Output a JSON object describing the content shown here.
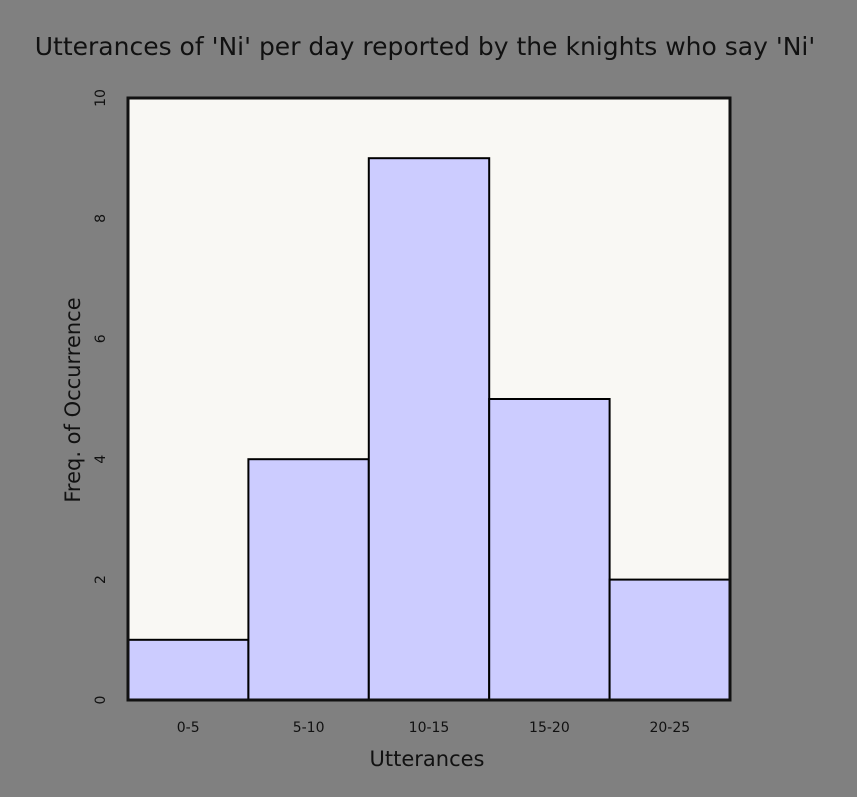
{
  "chart_data": {
    "type": "bar",
    "title": "Utterances of 'Ni' per day reported by the knights who say 'Ni'",
    "xlabel": "Utterances",
    "ylabel": "Freq. of Occurrence",
    "categories": [
      "0-5",
      "5-10",
      "10-15",
      "15-20",
      "20-25"
    ],
    "values": [
      1,
      4,
      9,
      5,
      2
    ],
    "ylim": [
      0,
      10
    ],
    "yticks": [
      "0",
      "2",
      "4",
      "6",
      "8",
      "10"
    ],
    "grid": false,
    "colors": {
      "background": "#808080",
      "plot_background": "#f9f8f4",
      "bar_fill": "#ccccff",
      "bar_stroke": "#000000",
      "frame": "#111111"
    }
  }
}
